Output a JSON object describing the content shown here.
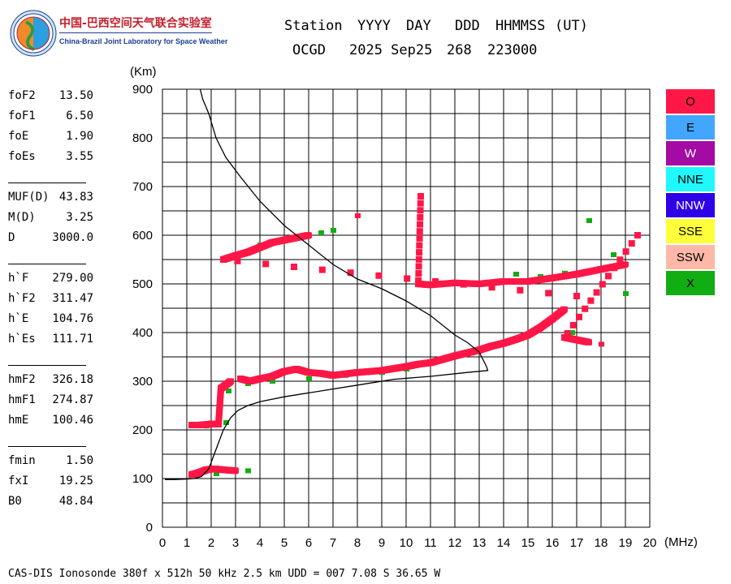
{
  "logo": {
    "title_cn": "中国-巴西空间天气联合实验室",
    "title_en": "China-Brazil Joint Laboratory for Space Weather",
    "icon": "globe-logo-icon"
  },
  "header": {
    "labels": [
      "Station",
      "YYYY",
      "DAY",
      "DDD",
      "HHMMSS",
      "(UT)"
    ],
    "station": "OCGD",
    "date": "2025 Sep25",
    "doy": "268",
    "time": "223000"
  },
  "parameters": {
    "group1": [
      {
        "name": "foF2",
        "value": "13.50"
      },
      {
        "name": "foF1",
        "value": "6.50"
      },
      {
        "name": "foE",
        "value": "1.90"
      },
      {
        "name": "foEs",
        "value": "3.55"
      }
    ],
    "group2": [
      {
        "name": "MUF(D)",
        "value": "43.83"
      },
      {
        "name": "M(D)",
        "value": "3.25"
      },
      {
        "name": "D",
        "value": "3000.0"
      }
    ],
    "group3": [
      {
        "name": "h`F",
        "value": "279.00"
      },
      {
        "name": "h`F2",
        "value": "311.47"
      },
      {
        "name": "h`E",
        "value": "104.76"
      },
      {
        "name": "h`Es",
        "value": "111.71"
      }
    ],
    "group4": [
      {
        "name": "hmF2",
        "value": "326.18"
      },
      {
        "name": "hmF1",
        "value": "274.87"
      },
      {
        "name": "hmE",
        "value": "100.46"
      }
    ],
    "group5": [
      {
        "name": "fmin",
        "value": "1.50"
      },
      {
        "name": "fxI",
        "value": "19.25"
      },
      {
        "name": "B0",
        "value": "48.84"
      }
    ]
  },
  "legend": [
    {
      "label": "O",
      "color": "#ff1747"
    },
    {
      "label": "E",
      "color": "#42a6ff"
    },
    {
      "label": "W",
      "color": "#a40aa4"
    },
    {
      "label": "NNE",
      "color": "#1ff8ff"
    },
    {
      "label": "NNW",
      "color": "#2d00e8"
    },
    {
      "label": "SSE",
      "color": "#ffff3a"
    },
    {
      "label": "SSW",
      "color": "#ffb8a8"
    },
    {
      "label": "X",
      "color": "#12ad12"
    }
  ],
  "footer": "CAS-DIS Ionosonde 380f x 512h 50 kHz 2.5 km UDD = 007 7.08 S 36.65 W",
  "chart_data": {
    "type": "scatter",
    "title": "",
    "xlabel": "(MHz)",
    "ylabel": "(Km)",
    "xlim": [
      0,
      20
    ],
    "ylim": [
      0,
      900
    ],
    "xticks": [
      0,
      1,
      2,
      3,
      4,
      5,
      6,
      7,
      8,
      9,
      10,
      11,
      12,
      13,
      14,
      15,
      16,
      17,
      18,
      19,
      20
    ],
    "yticks": [
      0,
      100,
      200,
      300,
      400,
      500,
      600,
      700,
      800,
      900
    ],
    "grid": true,
    "legend_position": "right",
    "series": [
      {
        "color": "#ff1747",
        "points": [
          [
            1.2,
            108
          ],
          [
            1.5,
            112
          ],
          [
            1.8,
            118
          ],
          [
            2.1,
            120
          ],
          [
            2.5,
            118
          ],
          [
            3.0,
            116
          ],
          [
            1.2,
            210
          ],
          [
            1.6,
            210
          ],
          [
            2.0,
            212
          ],
          [
            2.3,
            212
          ],
          [
            2.4,
            285
          ],
          [
            2.8,
            300
          ],
          [
            3.2,
            305
          ],
          [
            3.6,
            300
          ],
          [
            4.0,
            305
          ],
          [
            4.5,
            310
          ],
          [
            5.0,
            320
          ],
          [
            5.5,
            325
          ],
          [
            6.0,
            318
          ],
          [
            6.5,
            316
          ],
          [
            7.0,
            312
          ],
          [
            7.5,
            315
          ],
          [
            8.0,
            318
          ],
          [
            8.5,
            320
          ],
          [
            9.0,
            322
          ],
          [
            9.5,
            326
          ],
          [
            10.0,
            330
          ],
          [
            10.5,
            335
          ],
          [
            11.0,
            338
          ],
          [
            11.5,
            345
          ],
          [
            12.0,
            352
          ],
          [
            12.5,
            358
          ],
          [
            13.0,
            364
          ],
          [
            13.5,
            372
          ],
          [
            14.0,
            378
          ],
          [
            14.5,
            386
          ],
          [
            15.0,
            395
          ],
          [
            15.5,
            410
          ],
          [
            16.0,
            428
          ],
          [
            16.5,
            448
          ],
          [
            17.0,
            475
          ],
          [
            2.5,
            550
          ],
          [
            3.0,
            558
          ],
          [
            3.5,
            565
          ],
          [
            4.0,
            575
          ],
          [
            4.5,
            585
          ],
          [
            5.0,
            590
          ],
          [
            5.5,
            595
          ],
          [
            6.0,
            600
          ],
          [
            6.5,
            605
          ],
          [
            8.0,
            640
          ],
          [
            10.6,
            680
          ],
          [
            10.5,
            500
          ],
          [
            11.0,
            498
          ],
          [
            12.0,
            502
          ],
          [
            13.0,
            500
          ],
          [
            14.0,
            505
          ],
          [
            15.0,
            505
          ],
          [
            16.0,
            512
          ],
          [
            17.0,
            520
          ],
          [
            18.0,
            530
          ],
          [
            19.0,
            540
          ],
          [
            19.5,
            600
          ],
          [
            16.5,
            390
          ],
          [
            17.0,
            385
          ],
          [
            17.5,
            380
          ],
          [
            18.0,
            376
          ]
        ]
      },
      {
        "color": "#12ad12",
        "points": [
          [
            2.2,
            110
          ],
          [
            2.8,
            115
          ],
          [
            3.5,
            116
          ],
          [
            1.8,
            208
          ],
          [
            2.6,
            215
          ],
          [
            2.7,
            280
          ],
          [
            3.5,
            295
          ],
          [
            4.5,
            300
          ],
          [
            6.0,
            305
          ],
          [
            7.5,
            312
          ],
          [
            9.0,
            318
          ],
          [
            10.0,
            325
          ],
          [
            4.0,
            580
          ],
          [
            5.0,
            592
          ],
          [
            6.5,
            605
          ],
          [
            7.0,
            610
          ],
          [
            14.5,
            520
          ],
          [
            15.5,
            515
          ],
          [
            16.5,
            522
          ],
          [
            17.5,
            630
          ],
          [
            18.5,
            560
          ],
          [
            19.0,
            480
          ],
          [
            16.8,
            400
          ]
        ]
      },
      {
        "color": "#000000",
        "name": "",
        "points": [
          [
            1.55,
            900
          ],
          [
            1.65,
            880
          ],
          [
            1.9,
            850
          ],
          [
            2.2,
            800
          ],
          [
            2.6,
            760
          ],
          [
            3.2,
            720
          ],
          [
            4.0,
            670
          ],
          [
            5.0,
            620
          ],
          [
            6.0,
            580
          ],
          [
            7.0,
            540
          ],
          [
            8.0,
            510
          ],
          [
            9.0,
            490
          ],
          [
            10.0,
            465
          ],
          [
            11.0,
            435
          ],
          [
            12.0,
            395
          ],
          [
            12.5,
            380
          ],
          [
            13.0,
            360
          ],
          [
            13.3,
            330
          ],
          [
            13.35,
            322
          ],
          [
            12.5,
            318
          ],
          [
            11.0,
            310
          ],
          [
            9.5,
            304
          ],
          [
            8.0,
            292
          ],
          [
            6.5,
            280
          ],
          [
            5.0,
            268
          ],
          [
            4.0,
            258
          ],
          [
            3.5,
            250
          ],
          [
            3.1,
            240
          ],
          [
            2.8,
            225
          ],
          [
            2.5,
            200
          ],
          [
            2.2,
            160
          ],
          [
            1.9,
            120
          ],
          [
            1.6,
            104
          ],
          [
            1.3,
            100
          ],
          [
            1.0,
            99
          ],
          [
            0.5,
            98
          ],
          [
            0.1,
            98
          ]
        ]
      }
    ]
  }
}
